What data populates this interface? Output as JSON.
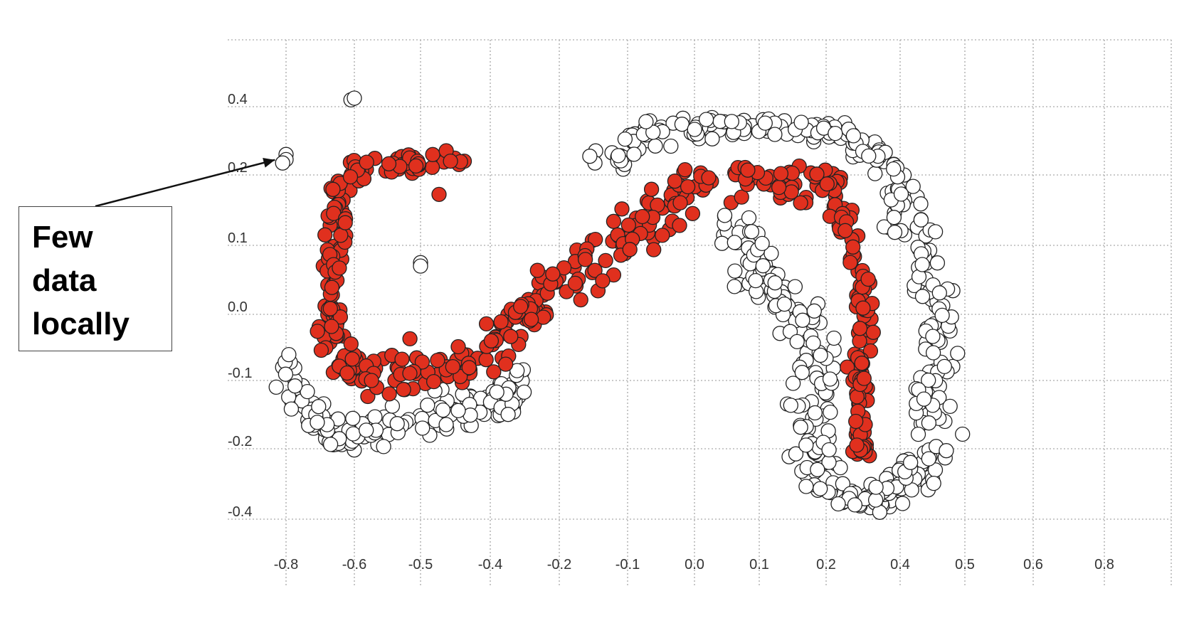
{
  "chart_data": {
    "type": "scatter",
    "title": "",
    "xlabel": "",
    "ylabel": "",
    "x_ticks": [
      "-0.8",
      "-0.6",
      "-0.5",
      "-0.4",
      "-0.2",
      "-0.1",
      "0.0",
      "0.1",
      "0.2",
      "0.4",
      "0.5",
      "0.6",
      "0.8"
    ],
    "y_ticks": [
      "0.4",
      "0.2",
      "0.1",
      "0.0",
      "-0.1",
      "-0.2",
      "-0.4"
    ],
    "grid": true,
    "legend": "none",
    "colors": {
      "cluster": "#e0301e",
      "other": "#ffffff",
      "edge": "#222222",
      "grid": "#b8b8b8"
    },
    "series": [
      {
        "color": "#e0301e",
        "segments": [
          {
            "path": [
              [
                -0.44,
                0.24
              ],
              [
                -0.52,
                0.24
              ],
              [
                -0.6,
                0.22
              ],
              [
                -0.64,
                0.17
              ],
              [
                -0.66,
                0.1
              ],
              [
                -0.67,
                0.03
              ],
              [
                -0.66,
                -0.04
              ],
              [
                -0.63,
                -0.08
              ],
              [
                -0.57,
                -0.09
              ],
              [
                -0.5,
                -0.1
              ],
              [
                -0.43,
                -0.07
              ],
              [
                -0.35,
                -0.02
              ],
              [
                -0.26,
                0.02
              ],
              [
                -0.18,
                0.06
              ],
              [
                -0.09,
                0.12
              ],
              [
                -0.04,
                0.16
              ],
              [
                0.0,
                0.19
              ],
              [
                0.03,
                0.18
              ]
            ],
            "count": 340,
            "spread": 0.018
          },
          {
            "path": [
              [
                0.06,
                0.21
              ],
              [
                0.12,
                0.19
              ],
              [
                0.2,
                0.18
              ],
              [
                0.25,
                0.14
              ],
              [
                0.28,
                0.09
              ],
              [
                0.3,
                0.02
              ],
              [
                0.3,
                -0.05
              ],
              [
                0.3,
                -0.1
              ],
              [
                0.29,
                -0.16
              ],
              [
                0.29,
                -0.22
              ]
            ],
            "count": 150,
            "spread": 0.016
          }
        ]
      },
      {
        "color": "#ffffff",
        "segments": [
          {
            "path": [
              [
                -0.81,
                -0.07
              ],
              [
                -0.76,
                -0.13
              ],
              [
                -0.68,
                -0.17
              ],
              [
                -0.6,
                -0.18
              ],
              [
                -0.52,
                -0.16
              ],
              [
                -0.44,
                -0.14
              ],
              [
                -0.36,
                -0.13
              ],
              [
                -0.3,
                -0.1
              ]
            ],
            "count": 150,
            "spread": 0.016
          },
          {
            "path": [
              [
                -0.13,
                0.23
              ],
              [
                -0.08,
                0.31
              ],
              [
                -0.02,
                0.34
              ],
              [
                0.06,
                0.35
              ],
              [
                0.15,
                0.34
              ],
              [
                0.24,
                0.32
              ],
              [
                0.32,
                0.27
              ],
              [
                0.38,
                0.2
              ],
              [
                0.42,
                0.12
              ],
              [
                0.45,
                0.03
              ],
              [
                0.46,
                -0.06
              ],
              [
                0.45,
                -0.15
              ],
              [
                0.44,
                -0.24
              ],
              [
                0.4,
                -0.31
              ],
              [
                0.33,
                -0.35
              ],
              [
                0.27,
                -0.34
              ],
              [
                0.21,
                -0.3
              ],
              [
                0.18,
                -0.22
              ],
              [
                0.18,
                -0.13
              ],
              [
                0.18,
                -0.06
              ],
              [
                0.15,
                0.0
              ],
              [
                0.11,
                0.05
              ],
              [
                0.07,
                0.11
              ],
              [
                0.04,
                0.15
              ]
            ],
            "count": 480,
            "spread": 0.017
          },
          {
            "points": [
              [
                -0.8,
                0.26
              ],
              [
                -0.8,
                0.245
              ],
              [
                -0.81,
                0.235
              ],
              [
                -0.61,
                0.42
              ],
              [
                -0.6,
                0.425
              ],
              [
                -0.5,
                0.075
              ],
              [
                -0.5,
                0.07
              ]
            ]
          }
        ]
      }
    ],
    "annotations": [
      {
        "text": "Few\ndata\nlocally",
        "arrow_to": [
          -0.82,
          0.24
        ]
      }
    ]
  }
}
